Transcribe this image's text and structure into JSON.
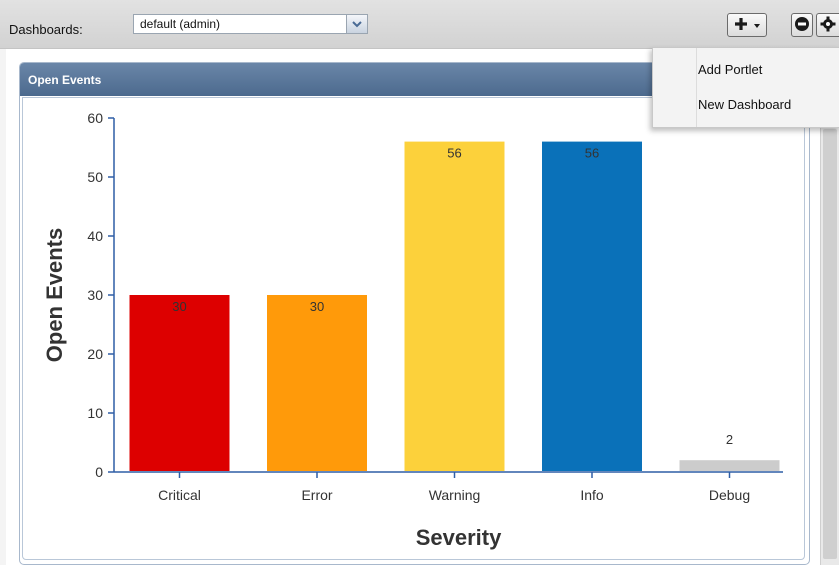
{
  "toolbar": {
    "dashboards_label": "Dashboards:",
    "dashboard_selected": "default (admin)",
    "add_icon": "plus-icon",
    "dropdown_icon": "caret-down-icon",
    "remove_icon": "minus-circle-icon",
    "settings_icon": "gear-icon"
  },
  "menu": {
    "items": [
      {
        "label": "Add Portlet"
      },
      {
        "label": "New Dashboard"
      }
    ]
  },
  "portlet": {
    "title": "Open Events"
  },
  "colors": {
    "header": "#55739a",
    "axis": "#2f5ea6"
  },
  "chart_data": {
    "type": "bar",
    "title": "",
    "xlabel": "Severity",
    "ylabel": "Open Events",
    "categories": [
      "Critical",
      "Error",
      "Warning",
      "Info",
      "Debug"
    ],
    "values": [
      30,
      30,
      56,
      56,
      2
    ],
    "data_labels": [
      "30",
      "30",
      "56",
      "56",
      "2"
    ],
    "colors": [
      "#dd0000",
      "#ff9a0a",
      "#fcd13b",
      "#0a71b9",
      "#cccccc"
    ],
    "ylim": [
      0,
      60
    ],
    "yticks": [
      0,
      10,
      20,
      30,
      40,
      50,
      60
    ],
    "grid": false,
    "legend": "none"
  }
}
